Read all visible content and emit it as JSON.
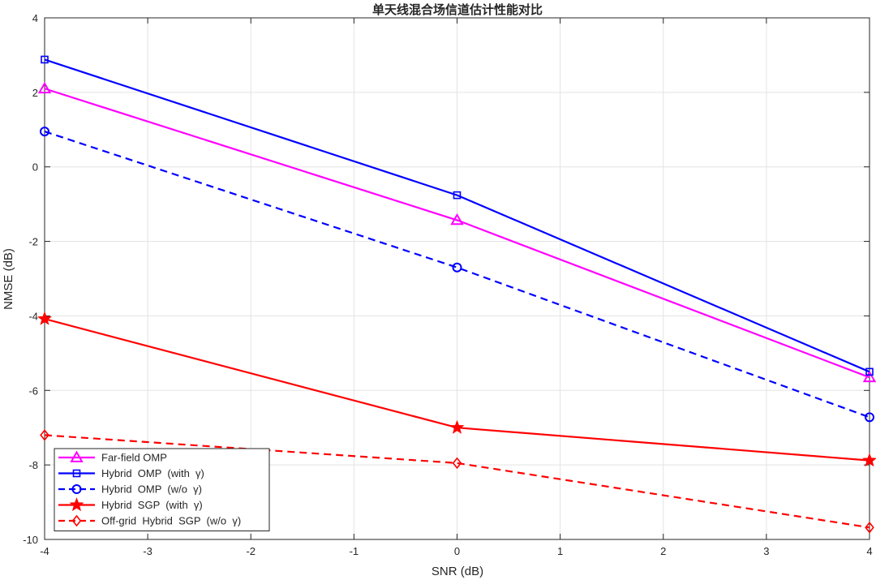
{
  "chart_data": {
    "type": "line",
    "title": "单天线混合场信道估计性能对比",
    "xlabel": "SNR (dB)",
    "ylabel": "NMSE (dB)",
    "xlim": [
      -4,
      4
    ],
    "ylim": [
      -10,
      4
    ],
    "xticks": [
      -4,
      -3,
      -2,
      -1,
      0,
      1,
      2,
      3,
      4
    ],
    "yticks": [
      -10,
      -8,
      -6,
      -4,
      -2,
      0,
      2,
      4
    ],
    "grid": true,
    "legend_position": "bottom-left",
    "x": [
      -4,
      0,
      4
    ],
    "series": [
      {
        "name": "Far-field OMP",
        "values": [
          2.1,
          -1.43,
          -5.65
        ],
        "color": "#ff00ff",
        "dash": "solid",
        "marker": "triangle"
      },
      {
        "name": "Hybrid  OMP  (with  γ)",
        "values": [
          2.88,
          -0.76,
          -5.5
        ],
        "color": "#0000ff",
        "dash": "solid",
        "marker": "square"
      },
      {
        "name": "Hybrid  OMP  (w/o  γ)",
        "values": [
          0.95,
          -2.7,
          -6.72
        ],
        "color": "#0000ff",
        "dash": "dashed",
        "marker": "circle"
      },
      {
        "name": "Hybrid  SGP  (with  γ)",
        "values": [
          -4.08,
          -7.0,
          -7.88
        ],
        "color": "#ff0000",
        "dash": "solid",
        "marker": "star"
      },
      {
        "name": "Off-grid  Hybrid  SGP  (w/o  γ)",
        "values": [
          -7.2,
          -7.95,
          -9.68
        ],
        "color": "#ff0000",
        "dash": "dashed",
        "marker": "diamond"
      }
    ]
  }
}
